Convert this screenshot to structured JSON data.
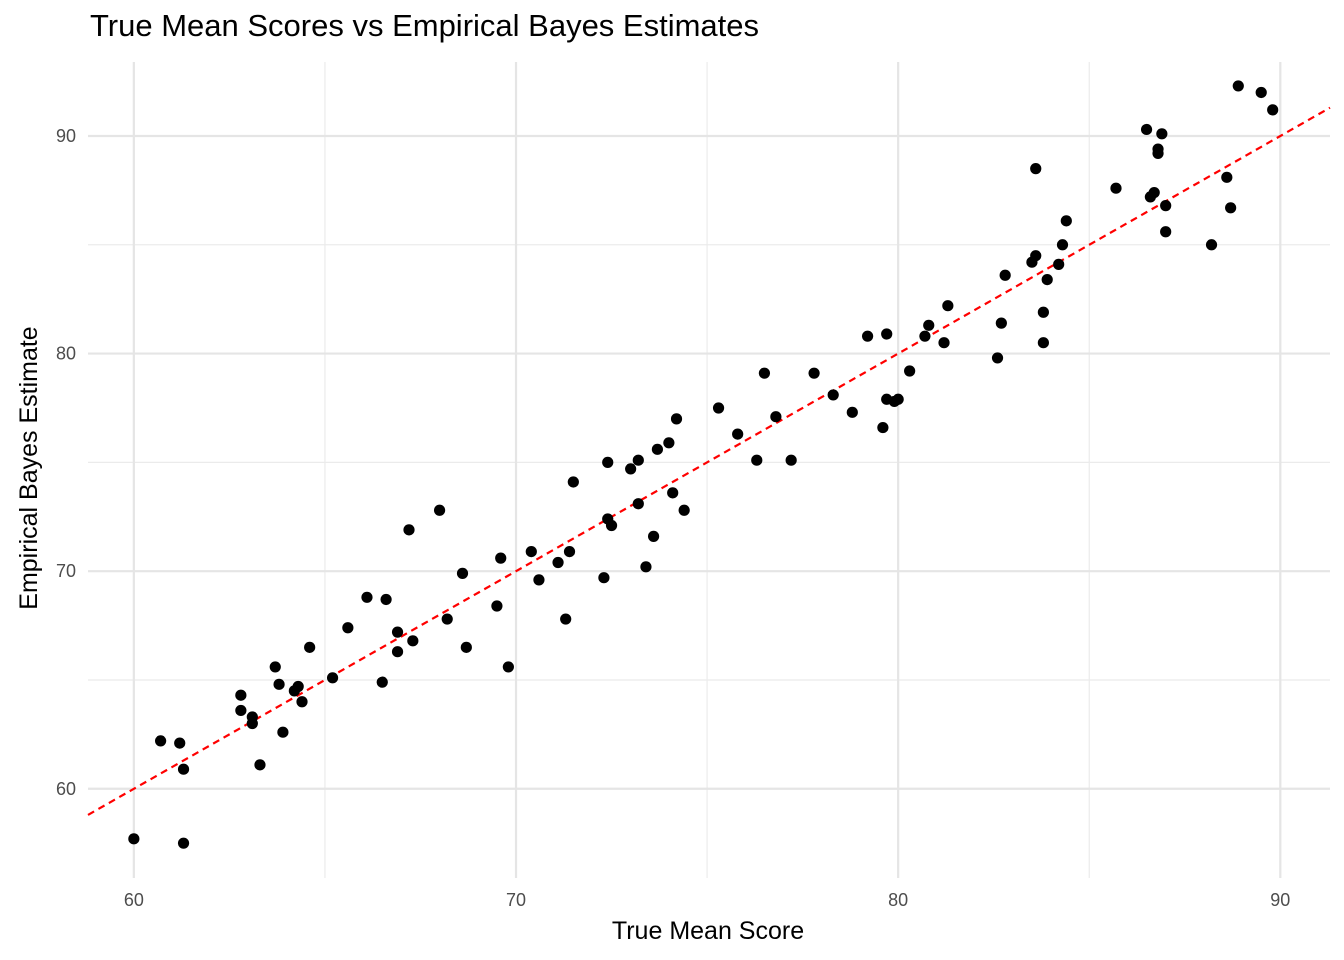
{
  "chart_data": {
    "type": "scatter",
    "title": "True Mean Scores vs Empirical Bayes Estimates",
    "xlabel": "True Mean Score",
    "ylabel": "Empirical Bayes Estimate",
    "xlim": [
      58.8,
      91.3
    ],
    "ylim": [
      55.9,
      93.4
    ],
    "x_ticks": [
      60,
      70,
      80,
      90
    ],
    "y_ticks": [
      60,
      70,
      80,
      90
    ],
    "grid": true,
    "legend": "none",
    "reference_line": {
      "slope": 1,
      "intercept": 0,
      "style": "dashed",
      "color": "#ff0000"
    },
    "point_color": "#000000",
    "points": [
      [
        60.0,
        57.7
      ],
      [
        60.7,
        62.2
      ],
      [
        61.2,
        62.1
      ],
      [
        61.3,
        60.9
      ],
      [
        61.3,
        57.5
      ],
      [
        62.8,
        64.3
      ],
      [
        62.8,
        63.6
      ],
      [
        63.1,
        63.3
      ],
      [
        63.1,
        63.0
      ],
      [
        63.3,
        61.1
      ],
      [
        63.7,
        65.6
      ],
      [
        63.8,
        64.8
      ],
      [
        63.9,
        62.6
      ],
      [
        64.2,
        64.5
      ],
      [
        64.3,
        64.7
      ],
      [
        64.4,
        64.0
      ],
      [
        64.6,
        66.5
      ],
      [
        65.2,
        65.1
      ],
      [
        65.6,
        67.4
      ],
      [
        66.1,
        68.8
      ],
      [
        66.5,
        64.9
      ],
      [
        66.6,
        68.7
      ],
      [
        66.9,
        67.2
      ],
      [
        66.9,
        66.3
      ],
      [
        67.2,
        71.9
      ],
      [
        67.3,
        66.8
      ],
      [
        68.0,
        72.8
      ],
      [
        68.2,
        67.8
      ],
      [
        68.6,
        69.9
      ],
      [
        68.7,
        66.5
      ],
      [
        69.5,
        68.4
      ],
      [
        69.6,
        70.6
      ],
      [
        69.8,
        65.6
      ],
      [
        70.4,
        70.9
      ],
      [
        70.6,
        69.6
      ],
      [
        71.1,
        70.4
      ],
      [
        71.3,
        67.8
      ],
      [
        71.4,
        70.9
      ],
      [
        71.5,
        74.1
      ],
      [
        72.3,
        69.7
      ],
      [
        72.4,
        75.0
      ],
      [
        72.4,
        72.4
      ],
      [
        72.5,
        72.1
      ],
      [
        73.0,
        74.7
      ],
      [
        73.2,
        73.1
      ],
      [
        73.2,
        75.1
      ],
      [
        73.4,
        70.2
      ],
      [
        73.6,
        71.6
      ],
      [
        73.7,
        75.6
      ],
      [
        74.0,
        75.9
      ],
      [
        74.1,
        73.6
      ],
      [
        74.2,
        77.0
      ],
      [
        74.4,
        72.8
      ],
      [
        75.3,
        77.5
      ],
      [
        75.8,
        76.3
      ],
      [
        76.3,
        75.1
      ],
      [
        76.5,
        79.1
      ],
      [
        76.8,
        77.1
      ],
      [
        77.2,
        75.1
      ],
      [
        77.8,
        79.1
      ],
      [
        78.3,
        78.1
      ],
      [
        78.8,
        77.3
      ],
      [
        79.2,
        80.8
      ],
      [
        79.6,
        76.6
      ],
      [
        79.7,
        80.9
      ],
      [
        79.7,
        77.9
      ],
      [
        79.9,
        77.8
      ],
      [
        80.0,
        77.9
      ],
      [
        80.3,
        79.2
      ],
      [
        80.7,
        80.8
      ],
      [
        80.8,
        81.3
      ],
      [
        81.2,
        80.5
      ],
      [
        81.3,
        82.2
      ],
      [
        82.6,
        79.8
      ],
      [
        82.7,
        81.4
      ],
      [
        82.8,
        83.6
      ],
      [
        83.5,
        84.2
      ],
      [
        83.6,
        88.5
      ],
      [
        83.6,
        84.5
      ],
      [
        83.8,
        81.9
      ],
      [
        83.8,
        80.5
      ],
      [
        83.9,
        83.4
      ],
      [
        84.2,
        84.1
      ],
      [
        84.3,
        85.0
      ],
      [
        84.4,
        86.1
      ],
      [
        85.7,
        87.6
      ],
      [
        86.5,
        90.3
      ],
      [
        86.6,
        87.2
      ],
      [
        86.7,
        87.4
      ],
      [
        86.8,
        89.4
      ],
      [
        86.8,
        89.2
      ],
      [
        86.9,
        90.1
      ],
      [
        87.0,
        85.6
      ],
      [
        87.0,
        86.8
      ],
      [
        88.2,
        85.0
      ],
      [
        88.6,
        88.1
      ],
      [
        88.7,
        86.7
      ],
      [
        88.9,
        92.3
      ],
      [
        89.5,
        92.0
      ],
      [
        89.8,
        91.2
      ]
    ]
  }
}
